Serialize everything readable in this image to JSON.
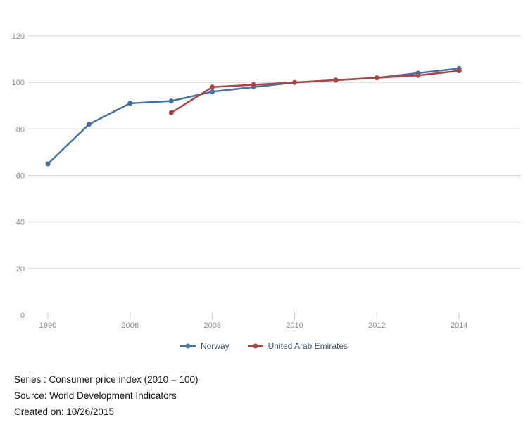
{
  "chart_data": {
    "type": "line",
    "title": "",
    "xlabel": "",
    "ylabel": "",
    "grid": "horizontal",
    "legend_position": "bottom-center",
    "y_axis": {
      "min": 0,
      "max": 120,
      "ticks": [
        0,
        20,
        40,
        60,
        80,
        100,
        120
      ]
    },
    "x_axis": {
      "num_categories": 11,
      "tick_labels": [
        "1990",
        "2006",
        "2008",
        "2010",
        "2012",
        "2014"
      ],
      "tick_positions": [
        0,
        2,
        4,
        6,
        8,
        10
      ]
    },
    "series": [
      {
        "name": "Norway",
        "color": "#4572a7",
        "start_index": 0,
        "values": [
          65,
          82,
          91,
          92,
          96,
          98,
          100,
          101,
          102,
          104,
          106
        ]
      },
      {
        "name": "United Arab Emirates",
        "color": "#aa4643",
        "start_index": 3,
        "values": [
          87,
          98,
          99,
          100,
          101,
          102,
          103,
          105
        ]
      }
    ]
  },
  "footer": {
    "series_line": "Series : Consumer price index (2010 = 100)",
    "source_line": "Source: World Development Indicators",
    "created_line": "Created on: 10/26/2015"
  },
  "colors": {
    "grid_line": "#d6d6d6",
    "tick_mark": "#c8c8c8",
    "axis_label": "#8d8d8d",
    "legend_text": "#3e576f",
    "footer_text": "#141414",
    "background": "#ffffff"
  }
}
